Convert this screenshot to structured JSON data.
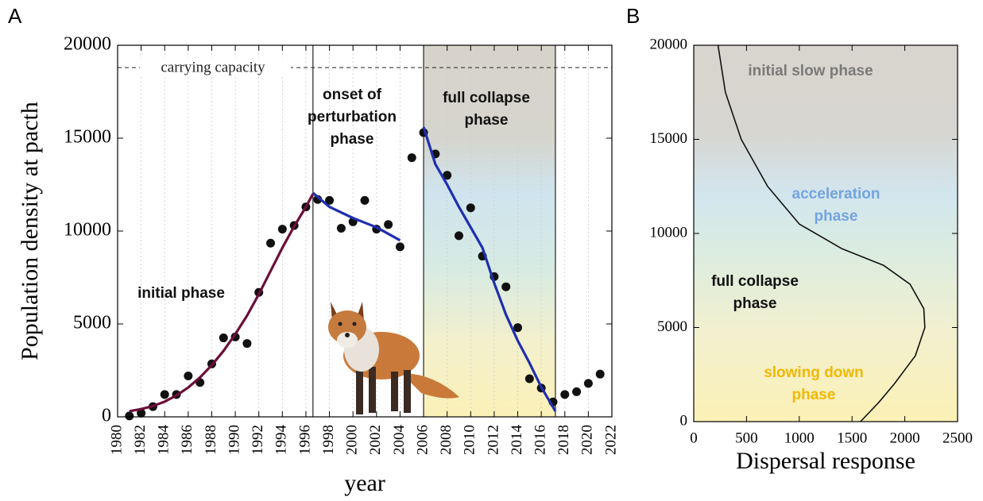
{
  "chart_data": [
    {
      "type": "scatter",
      "panel": "A",
      "xlabel": "year",
      "ylabel": "Population density at pacth",
      "xlim": [
        1980,
        2022
      ],
      "ylim": [
        0,
        20000
      ],
      "xticks": [
        1980,
        1982,
        1984,
        1986,
        1988,
        1990,
        1992,
        1994,
        1996,
        1998,
        2000,
        2002,
        2004,
        2006,
        2008,
        2010,
        2012,
        2014,
        2016,
        2018,
        2020,
        2022
      ],
      "yticks": [
        0,
        5000,
        10000,
        15000,
        20000
      ],
      "grid": true,
      "series": [
        {
          "type": "scatter",
          "color": "#111111",
          "x": [
            1981,
            1982,
            1983,
            1984,
            1985,
            1986,
            1987,
            1988,
            1989,
            1990,
            1991,
            1992,
            1993,
            1994,
            1995,
            1996,
            1997,
            1998,
            1999,
            2000,
            2001,
            2002,
            2003,
            2004,
            2005,
            2006,
            2007,
            2008,
            2009,
            2010,
            2011,
            2012,
            2013,
            2014,
            2015,
            2016,
            2017,
            2018,
            2019,
            2020,
            2021
          ],
          "values": [
            50,
            200,
            550,
            1200,
            1200,
            2200,
            1850,
            2850,
            4250,
            4300,
            3950,
            6700,
            9350,
            10100,
            10300,
            11300,
            11700,
            11650,
            10150,
            10500,
            11650,
            10100,
            10350,
            9150,
            13950,
            15300,
            14150,
            13000,
            9750,
            11250,
            8650,
            7550,
            7000,
            4800,
            2050,
            1550,
            800,
            1200,
            1350,
            1800,
            2300
          ]
        },
        {
          "type": "line",
          "color": "#6b0f3a",
          "x": [
            1981,
            1982,
            1983,
            1984,
            1985,
            1986,
            1987,
            1988,
            1989,
            1990,
            1991,
            1992,
            1993,
            1994,
            1995,
            1996,
            1996.6
          ],
          "values": [
            300,
            420,
            580,
            820,
            1150,
            1580,
            2120,
            2780,
            3550,
            4450,
            5450,
            6600,
            7850,
            9100,
            10250,
            11300,
            12000
          ]
        },
        {
          "type": "line",
          "color": "#1f2fb0",
          "x": [
            1996.6,
            1998,
            2000,
            2002,
            2004
          ],
          "values": [
            12050,
            11300,
            10700,
            10200,
            9500
          ]
        },
        {
          "type": "line",
          "color": "#1f2fb0",
          "x": [
            2006,
            2007,
            2008,
            2009,
            2010,
            2011,
            2012,
            2013,
            2014,
            2015,
            2016,
            2017.2
          ],
          "values": [
            15600,
            13600,
            12500,
            11300,
            10200,
            9100,
            7200,
            5500,
            4100,
            2900,
            1600,
            300
          ]
        }
      ],
      "vlines": [
        1996.6,
        2006,
        2017.2
      ],
      "shaded": [
        2006,
        2017.2
      ],
      "hline": {
        "value": 18800,
        "label": "carrying capacity"
      },
      "annotations": [
        [
          "initial phase"
        ],
        [
          "onset of",
          "perturbation",
          "phase"
        ],
        [
          "full collapse",
          "phase"
        ]
      ]
    },
    {
      "type": "line",
      "panel": "B",
      "xlabel": "Dispersal response",
      "xlim": [
        0,
        2500
      ],
      "ylim": [
        0,
        20000
      ],
      "xticks": [
        0,
        500,
        1000,
        1500,
        2000,
        2500
      ],
      "yticks": [
        0,
        5000,
        10000,
        15000,
        20000
      ],
      "series": [
        {
          "type": "line",
          "color": "#111111",
          "x": [
            230,
            300,
            450,
            700,
            1000,
            1400,
            1800,
            2050,
            2180,
            2190,
            2100,
            1900,
            1750,
            1580
          ],
          "values": [
            20000,
            17500,
            15000,
            12500,
            10500,
            9200,
            8300,
            7300,
            6000,
            5000,
            3500,
            2000,
            1000,
            0
          ]
        }
      ],
      "annotations": [
        [
          "initial slow phase"
        ],
        [
          "acceleration",
          "phase"
        ],
        [
          "full collapse",
          "phase"
        ],
        [
          "slowing down",
          "phase"
        ]
      ]
    }
  ]
}
